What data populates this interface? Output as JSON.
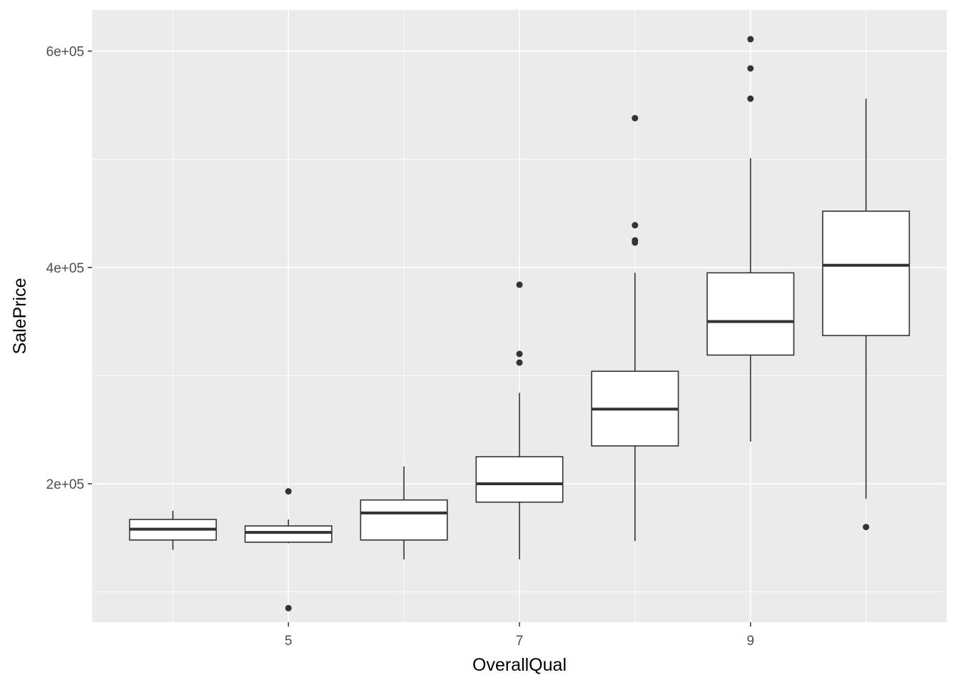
{
  "chart_data": {
    "type": "boxplot",
    "title": "",
    "xlabel": "OverallQual",
    "ylabel": "SalePrice",
    "x_range": [
      3.3,
      10.7
    ],
    "ylim": [
      72000,
      638000
    ],
    "x_ticks": [
      5,
      7,
      9
    ],
    "x_tick_labels": [
      "5",
      "7",
      "9"
    ],
    "y_ticks": [
      200000,
      400000,
      600000
    ],
    "y_tick_labels": [
      "2e+05",
      "4e+05",
      "6e+05"
    ],
    "y_minor_ticks": [
      100000,
      300000,
      500000
    ],
    "x_minor_ticks": [
      4,
      6,
      8,
      10
    ],
    "grid": true,
    "colors": {
      "panel": "#ebebeb",
      "grid": "#ffffff",
      "box_fill": "#ffffff",
      "stroke": "#333333",
      "outlier": "#333333"
    },
    "boxes": [
      {
        "x": 4,
        "lower_whisker": 139000,
        "q1": 148000,
        "median": 158000,
        "q3": 167000,
        "upper_whisker": 175000,
        "outliers": []
      },
      {
        "x": 5,
        "lower_whisker": 145000,
        "q1": 146000,
        "median": 155000,
        "q3": 161000,
        "upper_whisker": 167000,
        "outliers": [
          193000,
          85000
        ]
      },
      {
        "x": 6,
        "lower_whisker": 130000,
        "q1": 148000,
        "median": 173000,
        "q3": 185000,
        "upper_whisker": 216000,
        "outliers": []
      },
      {
        "x": 7,
        "lower_whisker": 130000,
        "q1": 183000,
        "median": 200000,
        "q3": 225000,
        "upper_whisker": 284000,
        "outliers": [
          384000,
          320000,
          312000
        ]
      },
      {
        "x": 8,
        "lower_whisker": 147000,
        "q1": 235000,
        "median": 269000,
        "q3": 304000,
        "upper_whisker": 395000,
        "outliers": [
          538000,
          439000,
          425000,
          423000
        ]
      },
      {
        "x": 9,
        "lower_whisker": 239000,
        "q1": 319000,
        "median": 350000,
        "q3": 395000,
        "upper_whisker": 501000,
        "outliers": [
          611000,
          584000,
          556000
        ]
      },
      {
        "x": 10,
        "lower_whisker": 186000,
        "q1": 337000,
        "median": 402000,
        "q3": 452000,
        "upper_whisker": 556000,
        "outliers": [
          160000
        ]
      }
    ]
  }
}
